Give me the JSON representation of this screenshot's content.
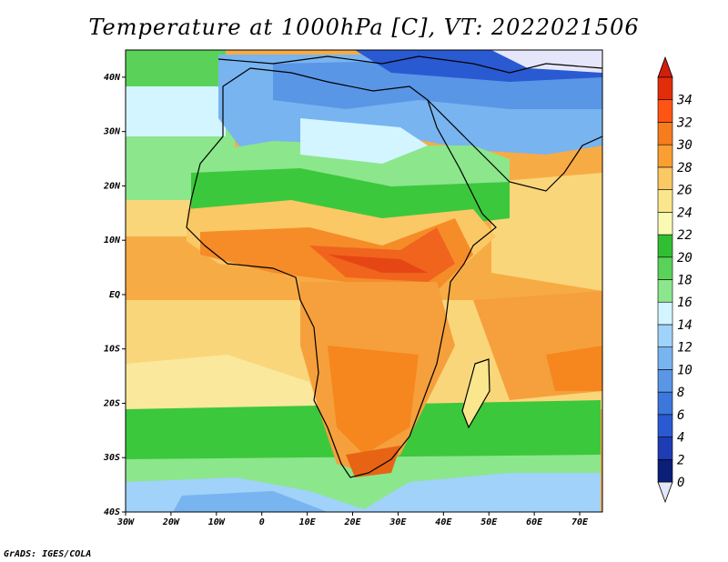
{
  "title": "Temperature at 1000hPa [C], VT: 2022021506",
  "footer": "GrADS: IGES/COLA",
  "map": {
    "lon_range": [
      -30,
      75
    ],
    "lat_range": [
      -40,
      45
    ],
    "x_ticks": [
      {
        "lon": -30,
        "label": "30W"
      },
      {
        "lon": -20,
        "label": "20W"
      },
      {
        "lon": -10,
        "label": "10W"
      },
      {
        "lon": 0,
        "label": "0"
      },
      {
        "lon": 10,
        "label": "10E"
      },
      {
        "lon": 20,
        "label": "20E"
      },
      {
        "lon": 30,
        "label": "30E"
      },
      {
        "lon": 40,
        "label": "40E"
      },
      {
        "lon": 50,
        "label": "50E"
      },
      {
        "lon": 60,
        "label": "60E"
      },
      {
        "lon": 70,
        "label": "70E"
      }
    ],
    "y_ticks": [
      {
        "lat": 40,
        "label": "40N"
      },
      {
        "lat": 30,
        "label": "30N"
      },
      {
        "lat": 20,
        "label": "20N"
      },
      {
        "lat": 10,
        "label": "10N"
      },
      {
        "lat": 0,
        "label": "EQ"
      },
      {
        "lat": -10,
        "label": "10S"
      },
      {
        "lat": -20,
        "label": "20S"
      },
      {
        "lat": -30,
        "label": "30S"
      },
      {
        "lat": -40,
        "label": "40S"
      }
    ]
  },
  "colorbar": {
    "levels": [
      0,
      2,
      4,
      6,
      8,
      10,
      12,
      14,
      16,
      18,
      20,
      22,
      24,
      26,
      28,
      30,
      32,
      34
    ],
    "labels": [
      "0",
      "2",
      "4",
      "6",
      "8",
      "10",
      "12",
      "14",
      "16",
      "18",
      "20",
      "22",
      "24",
      "26",
      "28",
      "30",
      "32",
      "34"
    ],
    "colors": [
      "#0b1e78",
      "#1e3cb4",
      "#2a5ad2",
      "#3c78dc",
      "#5a96e6",
      "#78b4f0",
      "#a0d2fa",
      "#d2f5ff",
      "#8ce68c",
      "#5ad25a",
      "#32be32",
      "#fafab4",
      "#fae68c",
      "#fac864",
      "#faa032",
      "#f57d1e",
      "#ff5514",
      "#e12d0a"
    ],
    "under_color": "#e6e6fa",
    "over_color": "#d21e0a"
  },
  "fields": [
    {
      "name": "ocean-base",
      "color": "#f5a63c"
    },
    {
      "name": "north-cold",
      "color": "#78b4f0"
    },
    {
      "name": "south-cool",
      "color": "#5ad25a"
    },
    {
      "name": "land-warm",
      "color": "#f08c2a"
    },
    {
      "name": "land-hot",
      "color": "#f0641e"
    }
  ]
}
